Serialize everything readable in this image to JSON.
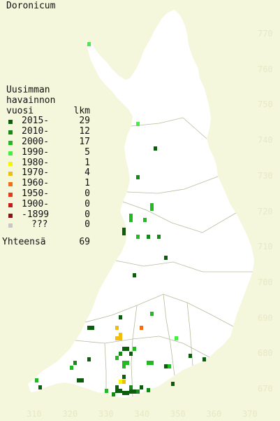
{
  "title": "Doronicum",
  "legend": {
    "heading": [
      "Uusimman",
      "havainnon",
      "vuosi"
    ],
    "count_header": "lkm",
    "rows": [
      {
        "label": "2015-",
        "count": "29",
        "color": "#0b5e0b"
      },
      {
        "label": "2010-",
        "count": "12",
        "color": "#168a16"
      },
      {
        "label": "2000-",
        "count": "17",
        "color": "#22b922"
      },
      {
        "label": "1990-",
        "count": "5",
        "color": "#44ee44"
      },
      {
        "label": "1980-",
        "count": "1",
        "color": "#f5f500"
      },
      {
        "label": "1970-",
        "count": "4",
        "color": "#f3bd0e"
      },
      {
        "label": "1960-",
        "count": "1",
        "color": "#f26f18"
      },
      {
        "label": "1950-",
        "count": "0",
        "color": "#e73a1a"
      },
      {
        "label": "1900-",
        "count": "0",
        "color": "#c41b1b"
      },
      {
        "label": "-1899",
        "count": "0",
        "color": "#8e1212"
      },
      {
        "label": "???",
        "count": "0",
        "color": "#c8c8c8"
      }
    ],
    "total_label": "Yhteensä",
    "total_count": "69"
  },
  "axes": {
    "y_ticks": [
      "770",
      "760",
      "750",
      "740",
      "730",
      "720",
      "710",
      "700",
      "690",
      "680",
      "670"
    ],
    "x_ticks": [
      "310",
      "320",
      "330",
      "340",
      "350",
      "360",
      "370"
    ]
  }
}
